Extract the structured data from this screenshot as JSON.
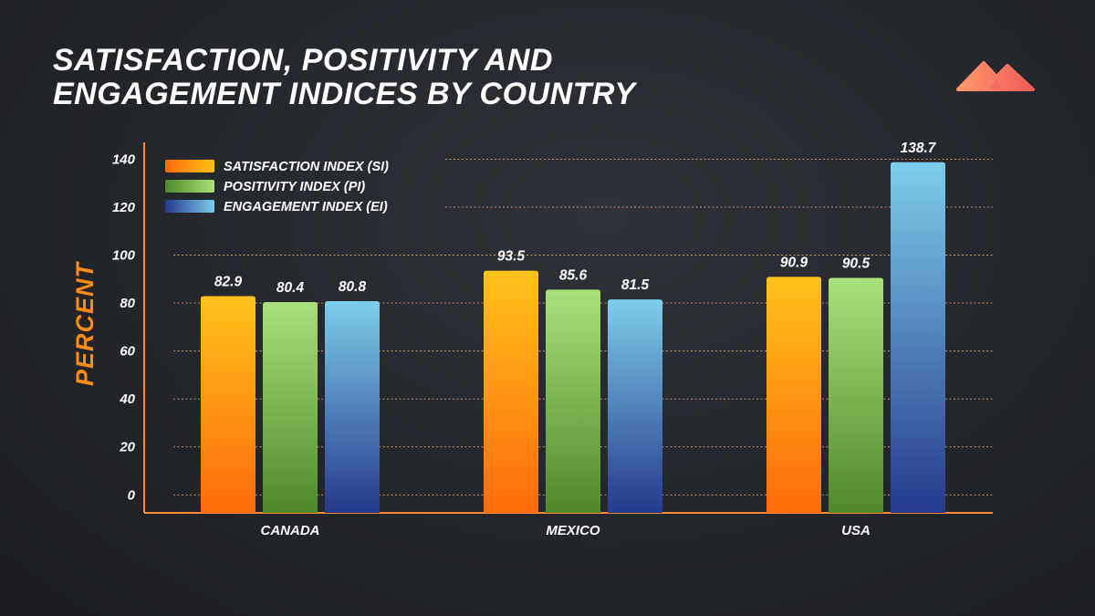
{
  "chart_data": {
    "type": "bar",
    "title": "SATISFACTION, POSITIVITY AND ENGAGEMENT INDICES BY COUNTRY",
    "xlabel": "",
    "ylabel": "PERCENT",
    "categories": [
      "CANADA",
      "MEXICO",
      "USA"
    ],
    "series": [
      {
        "name": "SATISFACTION INDEX (SI)",
        "values": [
          82.9,
          93.5,
          90.9
        ],
        "colors": [
          "#ffc21a",
          "#ff6a0a"
        ]
      },
      {
        "name": "POSITIVITY INDEX (PI)",
        "values": [
          80.4,
          85.6,
          90.5
        ],
        "colors": [
          "#a9e07b",
          "#4e8a2a"
        ]
      },
      {
        "name": "ENGAGEMENT INDEX (EI)",
        "values": [
          80.8,
          81.5,
          138.7
        ],
        "colors": [
          "#7dcdeb",
          "#253a8c"
        ]
      }
    ],
    "yticks": [
      0,
      20,
      40,
      60,
      80,
      100,
      120,
      140
    ],
    "ylim": [
      -7.5,
      147
    ],
    "grid": true,
    "legend": "top-left"
  }
}
